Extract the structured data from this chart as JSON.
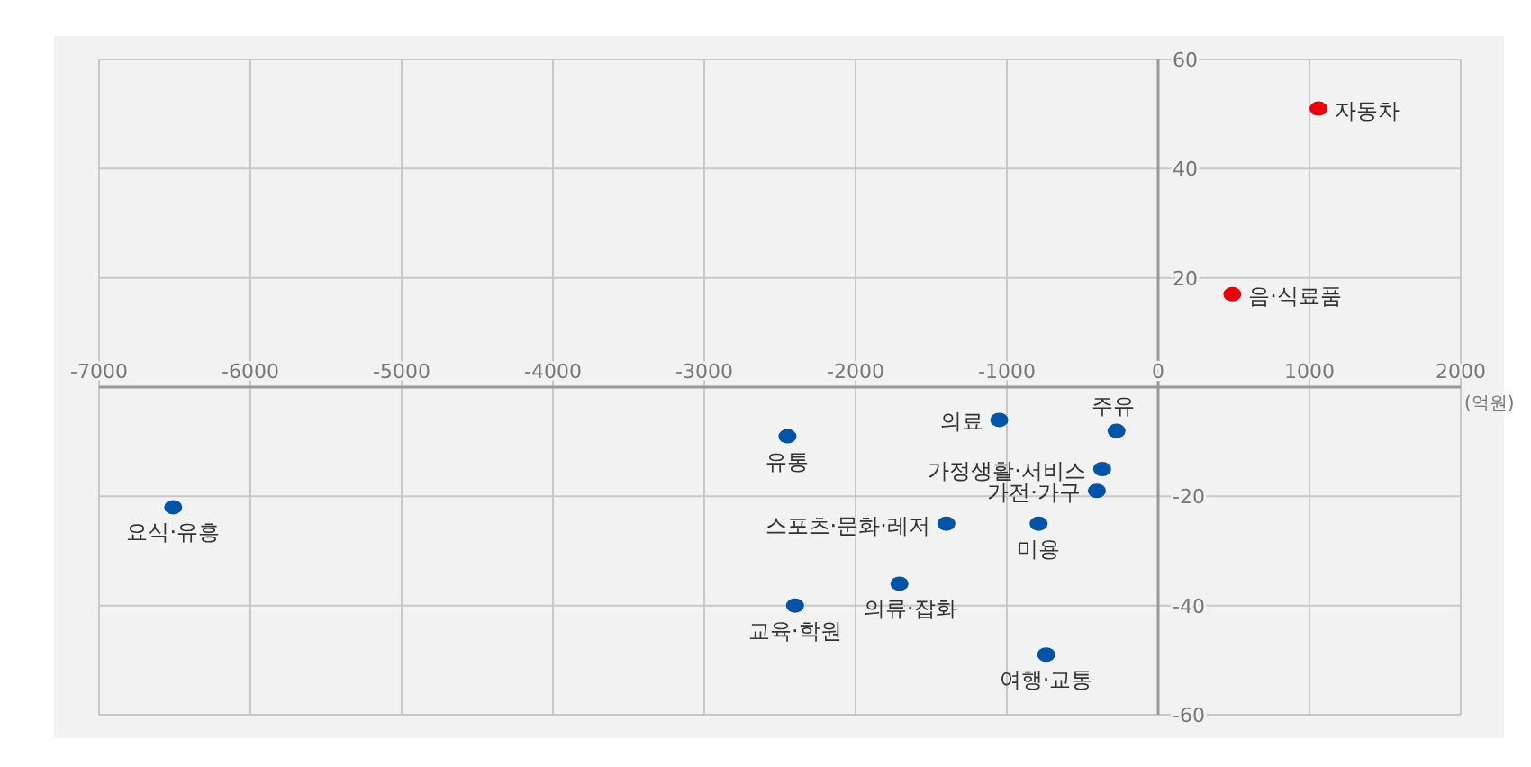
{
  "chart_data": {
    "type": "scatter",
    "xlabel": "(억원)",
    "xlim": [
      -7000,
      2000
    ],
    "xticks": [
      -7000,
      -6000,
      -5000,
      -4000,
      -3000,
      -2000,
      -1000,
      0,
      1000,
      2000
    ],
    "ylim": [
      -60,
      60
    ],
    "yticks": [
      -60,
      -40,
      -20,
      20,
      40,
      60
    ],
    "grid": true,
    "marker": "circle",
    "series": [
      {
        "color": "#e8000b",
        "x": [
          1060,
          490
        ],
        "values": [
          51,
          17
        ]
      },
      {
        "color": "#0053a6",
        "x": [
          -1050,
          -275,
          -2450,
          -370,
          -405,
          -6510,
          -1400,
          -790,
          -1710,
          -2400,
          -740
        ],
        "values": [
          -6,
          -8,
          -9,
          -15,
          -19,
          -22,
          -25,
          -25,
          -36,
          -40,
          -49
        ]
      }
    ],
    "annotations": [
      {
        "text": "자동차",
        "x": 1060,
        "y": 51
      },
      {
        "text": "음·식료품",
        "x": 490,
        "y": 17
      },
      {
        "text": "의료",
        "x": -1050,
        "y": -6
      },
      {
        "text": "주유",
        "x": -275,
        "y": -8
      },
      {
        "text": "유통",
        "x": -2450,
        "y": -9
      },
      {
        "text": "가정생활·서비스",
        "x": -370,
        "y": -15
      },
      {
        "text": "가전·가구",
        "x": -405,
        "y": -19
      },
      {
        "text": "요식·유흥",
        "x": -6510,
        "y": -22
      },
      {
        "text": "스포츠·문화·레저",
        "x": -1400,
        "y": -25
      },
      {
        "text": "미용",
        "x": -790,
        "y": -25
      },
      {
        "text": "의류·잡화",
        "x": -1710,
        "y": -36
      },
      {
        "text": "교육·학원",
        "x": -2400,
        "y": -40
      },
      {
        "text": "여행·교통",
        "x": -740,
        "y": -49
      }
    ]
  }
}
